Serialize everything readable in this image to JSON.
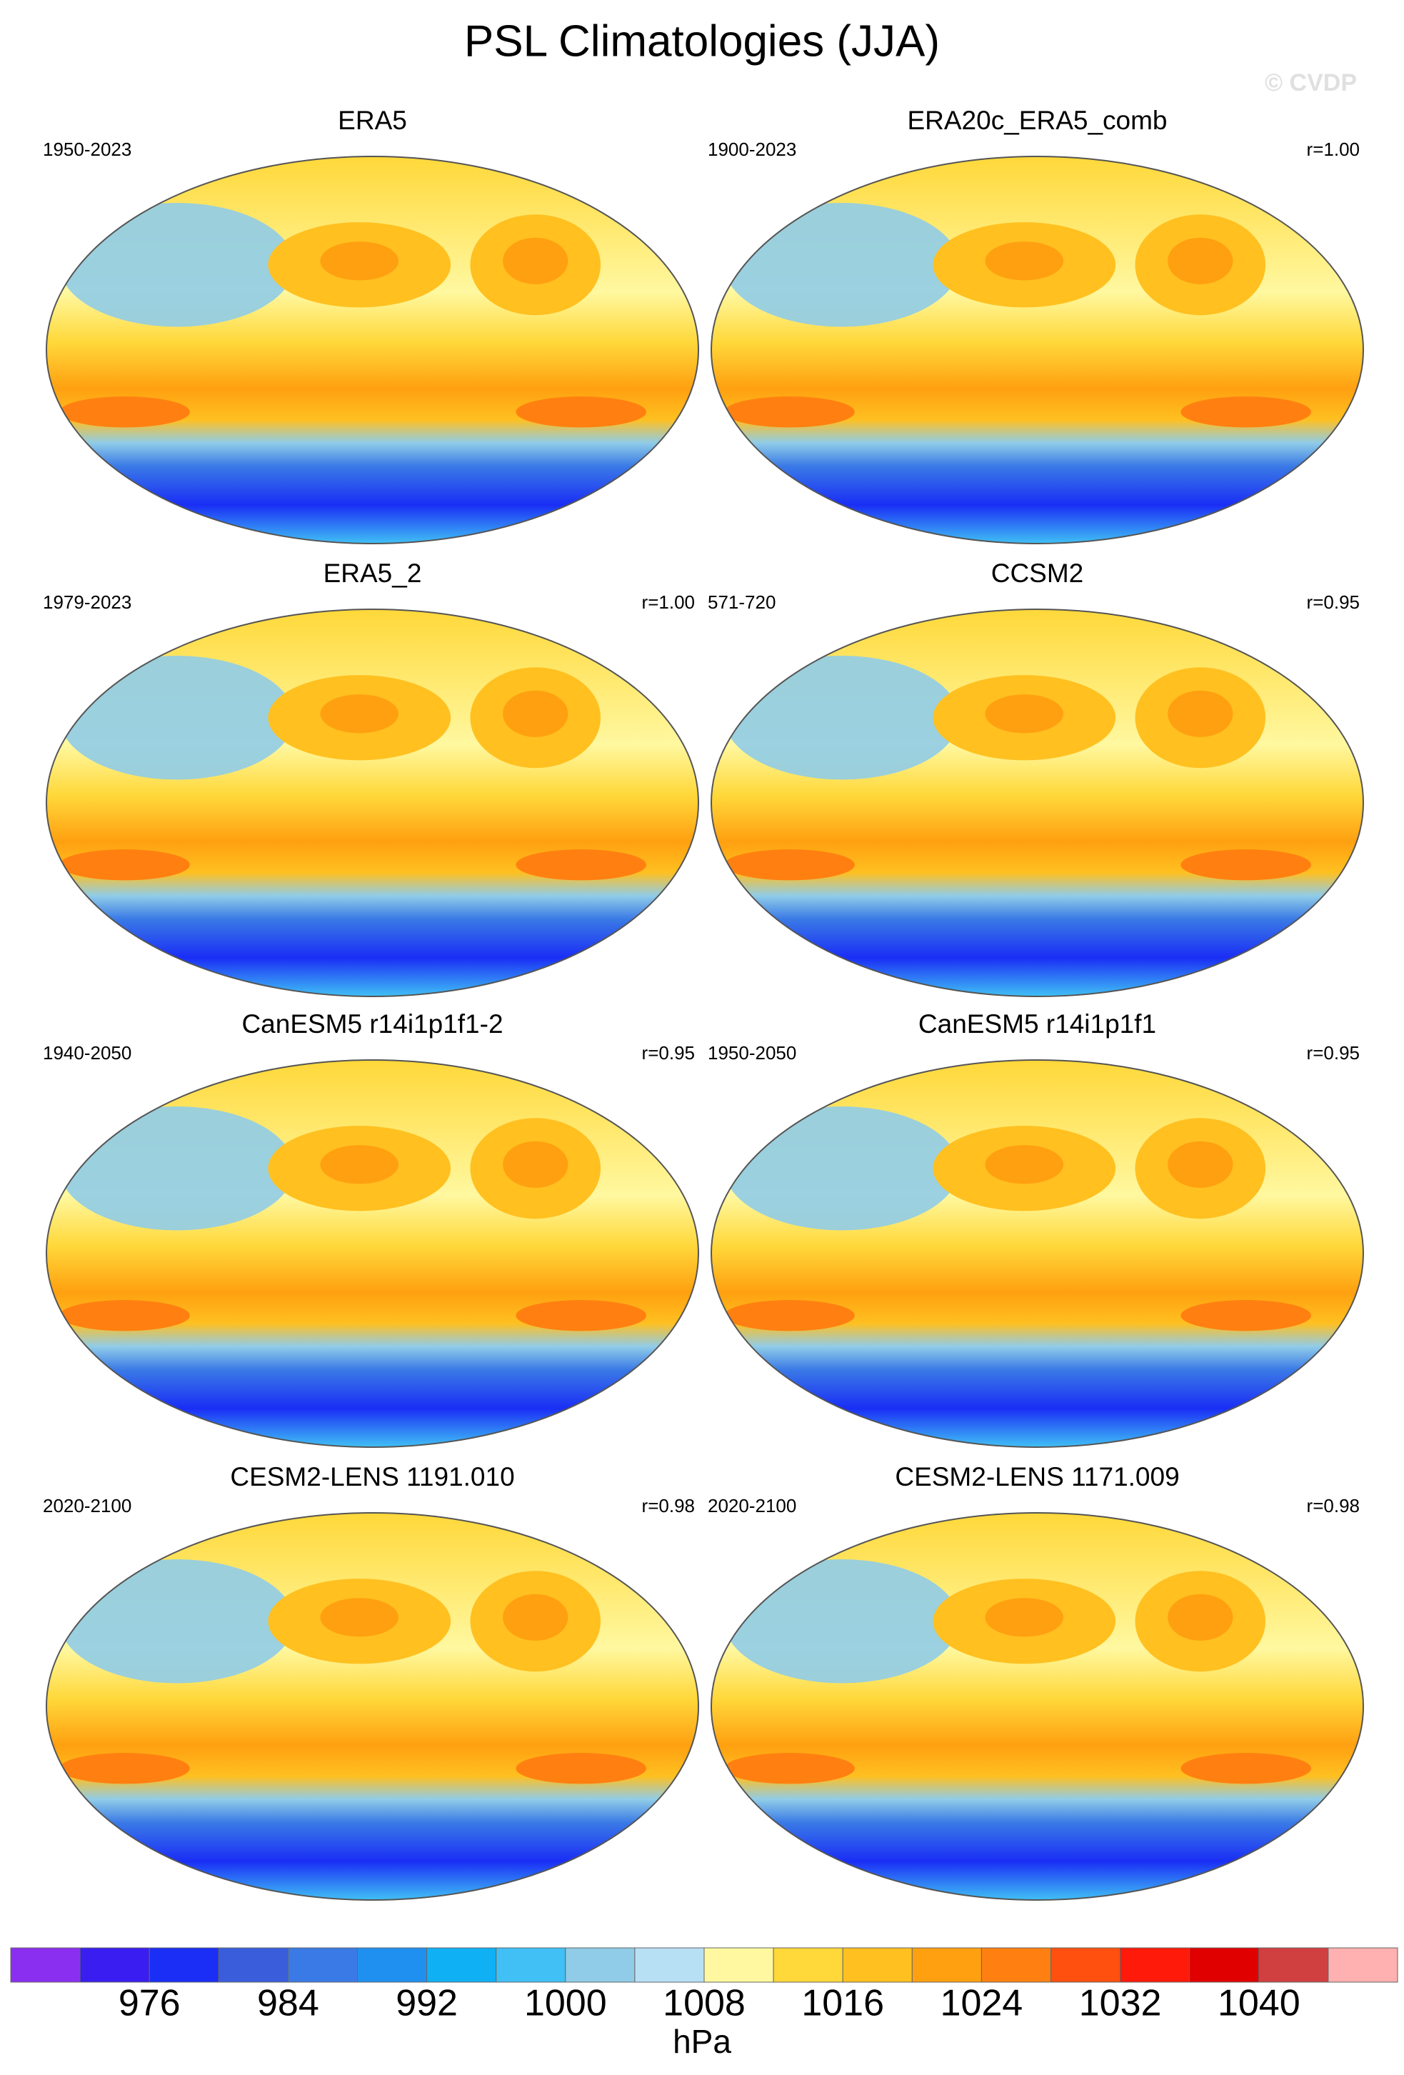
{
  "title": "PSL Climatologies (JJA)",
  "watermark": "© CVDP",
  "panels": [
    {
      "title": "ERA5",
      "period": "1950-2023"
    },
    {
      "title": "ERA20c_ERA5_comb",
      "period": "1900-2023",
      "r": "r=1.00"
    },
    {
      "title": "ERA5_2",
      "period": "1979-2023",
      "r": "r=1.00"
    },
    {
      "title": "CCSM2",
      "period": "571-720",
      "r": "r=0.95"
    },
    {
      "title": "CanESM5 r14i1p1f1-2",
      "period": "1940-2050",
      "r": "r=0.95"
    },
    {
      "title": "CanESM5 r14i1p1f1",
      "period": "1950-2050",
      "r": "r=0.95"
    },
    {
      "title": "CESM2-LENS 1191.010",
      "period": "2020-2100",
      "r": "r=0.98"
    },
    {
      "title": "CESM2-LENS 1171.009",
      "period": "2020-2100",
      "r": "r=0.98"
    }
  ],
  "colorbar": {
    "label": "hPa",
    "colors": [
      "#8a2ff0",
      "#3a1df0",
      "#1a2ef5",
      "#3a5ddc",
      "#3a7ae6",
      "#2090f0",
      "#10b0f5",
      "#40c0f5",
      "#90cce8",
      "#b8e0f5",
      "#fff8a0",
      "#ffd83a",
      "#ffc020",
      "#ffa010",
      "#ff8010",
      "#ff5010",
      "#ff1a0a",
      "#e00000",
      "#d04040",
      "#ffb0b0"
    ],
    "levels": [
      972,
      976,
      980,
      984,
      988,
      992,
      996,
      1000,
      1004,
      1008,
      1012,
      1016,
      1020,
      1024,
      1028,
      1032,
      1036,
      1040,
      1044
    ],
    "ticks": [
      976,
      984,
      992,
      1000,
      1008,
      1016,
      1024,
      1032,
      1040
    ]
  }
}
